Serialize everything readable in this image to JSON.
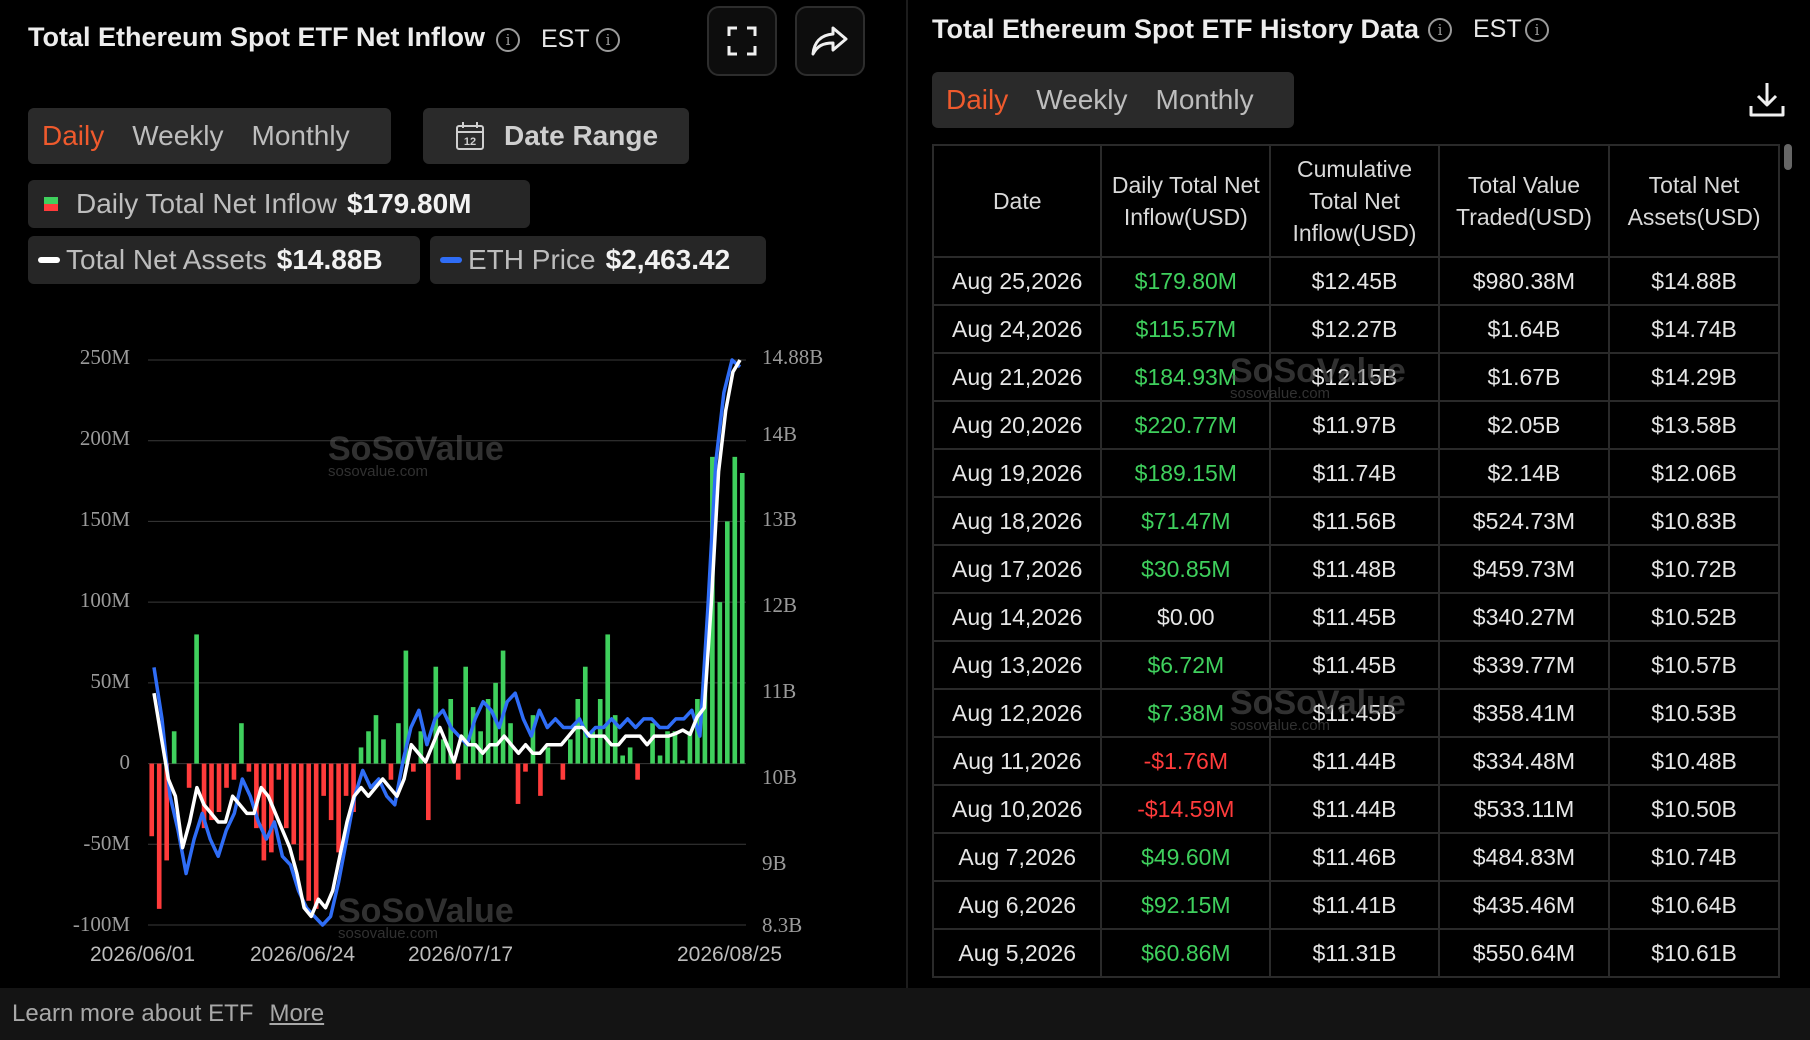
{
  "left": {
    "title": "Total Ethereum Spot ETF Net Inflow",
    "tz": "EST",
    "tabs": [
      "Daily",
      "Weekly",
      "Monthly"
    ],
    "active_tab": "Daily",
    "date_range_label": "Date Range",
    "calendar_day": "12",
    "legend": {
      "inflow_label": "Daily Total Net Inflow",
      "inflow_value": "$179.80M",
      "assets_label": "Total Net Assets",
      "assets_value": "$14.88B",
      "price_label": "ETH Price",
      "price_value": "$2,463.42"
    },
    "watermark": {
      "name": "SoSoValue",
      "url": "sosovalue.com"
    }
  },
  "chart_data": {
    "type": "bar",
    "left_axis_ticks": [
      "250M",
      "200M",
      "150M",
      "100M",
      "50M",
      "0",
      "-50M",
      "-100M"
    ],
    "right_axis_ticks": [
      "14.88B",
      "14B",
      "13B",
      "12B",
      "11B",
      "10B",
      "9B",
      "8.3B"
    ],
    "x_tick_labels": [
      "2026/06/01",
      "2026/06/24",
      "2026/07/17",
      "2026/08/25"
    ],
    "ylim": [
      -100,
      250
    ],
    "y2lim": [
      8.3,
      14.88
    ],
    "grid": true,
    "series": [
      {
        "name": "Daily Total Net Inflow",
        "unit": "M USD",
        "kind": "bar",
        "values": [
          -45,
          -90,
          -60,
          20,
          0,
          -15,
          80,
          -40,
          -35,
          -30,
          -15,
          -10,
          25,
          -5,
          -40,
          -60,
          -55,
          -10,
          -40,
          -50,
          -60,
          -85,
          -90,
          -20,
          -35,
          -55,
          -20,
          -30,
          10,
          20,
          30,
          15,
          -10,
          25,
          70,
          -5,
          20,
          -35,
          60,
          15,
          40,
          -10,
          60,
          35,
          20,
          40,
          50,
          70,
          25,
          -25,
          -5,
          30,
          -20,
          10,
          0,
          -10,
          15,
          40,
          60,
          20,
          40,
          80,
          30,
          5,
          10,
          -10,
          0,
          25,
          5,
          20,
          20,
          2,
          20,
          40,
          60,
          190,
          100,
          150,
          190,
          180
        ],
        "colors": {
          "positive": "#3fd05d",
          "negative": "#ff3b3b"
        }
      },
      {
        "name": "Total Net Assets",
        "unit": "B USD",
        "kind": "line",
        "color": "#ffffff",
        "values": [
          11.0,
          10.5,
          10.0,
          9.8,
          9.2,
          9.5,
          9.9,
          9.7,
          9.6,
          9.5,
          9.5,
          9.8,
          9.7,
          9.6,
          9.6,
          9.9,
          9.8,
          9.6,
          9.4,
          9.2,
          8.9,
          8.5,
          8.4,
          8.6,
          8.5,
          8.7,
          9.1,
          9.5,
          9.8,
          9.9,
          9.8,
          9.9,
          10.0,
          9.9,
          9.8,
          10.0,
          10.4,
          10.3,
          10.2,
          10.4,
          10.6,
          10.4,
          10.2,
          10.5,
          10.4,
          10.4,
          10.3,
          10.4,
          10.4,
          10.5,
          10.4,
          10.3,
          10.4,
          10.3,
          10.3,
          10.4,
          10.4,
          10.4,
          10.5,
          10.6,
          10.6,
          10.5,
          10.5,
          10.5,
          10.4,
          10.4,
          10.5,
          10.5,
          10.5,
          10.4,
          10.5,
          10.5,
          10.5,
          10.53,
          10.57,
          10.52,
          10.72,
          10.83,
          12.06,
          13.58,
          14.29,
          14.74,
          14.88
        ]
      },
      {
        "name": "ETH Price",
        "unit": "B-axis scaled",
        "kind": "line",
        "color": "#2f6df6",
        "values": [
          11.3,
          10.7,
          9.8,
          9.4,
          8.9,
          9.3,
          9.6,
          9.3,
          9.1,
          9.4,
          9.6,
          10.0,
          9.8,
          9.5,
          9.3,
          9.5,
          9.1,
          9.0,
          8.7,
          8.5,
          8.4,
          8.3,
          8.4,
          8.8,
          9.3,
          9.8,
          10.1,
          9.9,
          10.0,
          9.8,
          9.7,
          10.2,
          10.6,
          10.8,
          10.4,
          10.7,
          10.8,
          10.6,
          10.5,
          10.4,
          10.7,
          10.9,
          10.8,
          10.6,
          10.9,
          11.0,
          10.7,
          10.5,
          10.8,
          10.6,
          10.7,
          10.6,
          10.6,
          10.7,
          10.5,
          10.6,
          10.6,
          10.7,
          10.6,
          10.7,
          10.6,
          10.7,
          10.7,
          10.6,
          10.6,
          10.7,
          10.7,
          10.8,
          10.5,
          12.0,
          13.7,
          14.5,
          14.88,
          14.8
        ]
      }
    ]
  },
  "right": {
    "title": "Total Ethereum Spot ETF History Data",
    "tz": "EST",
    "tabs": [
      "Daily",
      "Weekly",
      "Monthly"
    ],
    "active_tab": "Daily",
    "columns": [
      "Date",
      "Daily Total Net Inflow(USD)",
      "Cumulative Total Net Inflow(USD)",
      "Total Value Traded(USD)",
      "Total Net Assets(USD)"
    ],
    "rows": [
      {
        "date": "Aug 25,2026",
        "inflow": "$179.80M",
        "sign": "pos",
        "cum": "$12.45B",
        "traded": "$980.38M",
        "assets": "$14.88B"
      },
      {
        "date": "Aug 24,2026",
        "inflow": "$115.57M",
        "sign": "pos",
        "cum": "$12.27B",
        "traded": "$1.64B",
        "assets": "$14.74B"
      },
      {
        "date": "Aug 21,2026",
        "inflow": "$184.93M",
        "sign": "pos",
        "cum": "$12.15B",
        "traded": "$1.67B",
        "assets": "$14.29B"
      },
      {
        "date": "Aug 20,2026",
        "inflow": "$220.77M",
        "sign": "pos",
        "cum": "$11.97B",
        "traded": "$2.05B",
        "assets": "$13.58B"
      },
      {
        "date": "Aug 19,2026",
        "inflow": "$189.15M",
        "sign": "pos",
        "cum": "$11.74B",
        "traded": "$2.14B",
        "assets": "$12.06B"
      },
      {
        "date": "Aug 18,2026",
        "inflow": "$71.47M",
        "sign": "pos",
        "cum": "$11.56B",
        "traded": "$524.73M",
        "assets": "$10.83B"
      },
      {
        "date": "Aug 17,2026",
        "inflow": "$30.85M",
        "sign": "pos",
        "cum": "$11.48B",
        "traded": "$459.73M",
        "assets": "$10.72B"
      },
      {
        "date": "Aug 14,2026",
        "inflow": "$0.00",
        "sign": "zero",
        "cum": "$11.45B",
        "traded": "$340.27M",
        "assets": "$10.52B"
      },
      {
        "date": "Aug 13,2026",
        "inflow": "$6.72M",
        "sign": "pos",
        "cum": "$11.45B",
        "traded": "$339.77M",
        "assets": "$10.57B"
      },
      {
        "date": "Aug 12,2026",
        "inflow": "$7.38M",
        "sign": "pos",
        "cum": "$11.45B",
        "traded": "$358.41M",
        "assets": "$10.53B"
      },
      {
        "date": "Aug 11,2026",
        "inflow": "-$1.76M",
        "sign": "neg",
        "cum": "$11.44B",
        "traded": "$334.48M",
        "assets": "$10.48B"
      },
      {
        "date": "Aug 10,2026",
        "inflow": "-$14.59M",
        "sign": "neg",
        "cum": "$11.44B",
        "traded": "$533.11M",
        "assets": "$10.50B"
      },
      {
        "date": "Aug 7,2026",
        "inflow": "$49.60M",
        "sign": "pos",
        "cum": "$11.46B",
        "traded": "$484.83M",
        "assets": "$10.74B"
      },
      {
        "date": "Aug 6,2026",
        "inflow": "$92.15M",
        "sign": "pos",
        "cum": "$11.41B",
        "traded": "$435.46M",
        "assets": "$10.64B"
      },
      {
        "date": "Aug 5,2026",
        "inflow": "$60.86M",
        "sign": "pos",
        "cum": "$11.31B",
        "traded": "$550.64M",
        "assets": "$10.61B"
      }
    ]
  },
  "footer": {
    "text": "Learn more about ETF",
    "link": "More"
  }
}
